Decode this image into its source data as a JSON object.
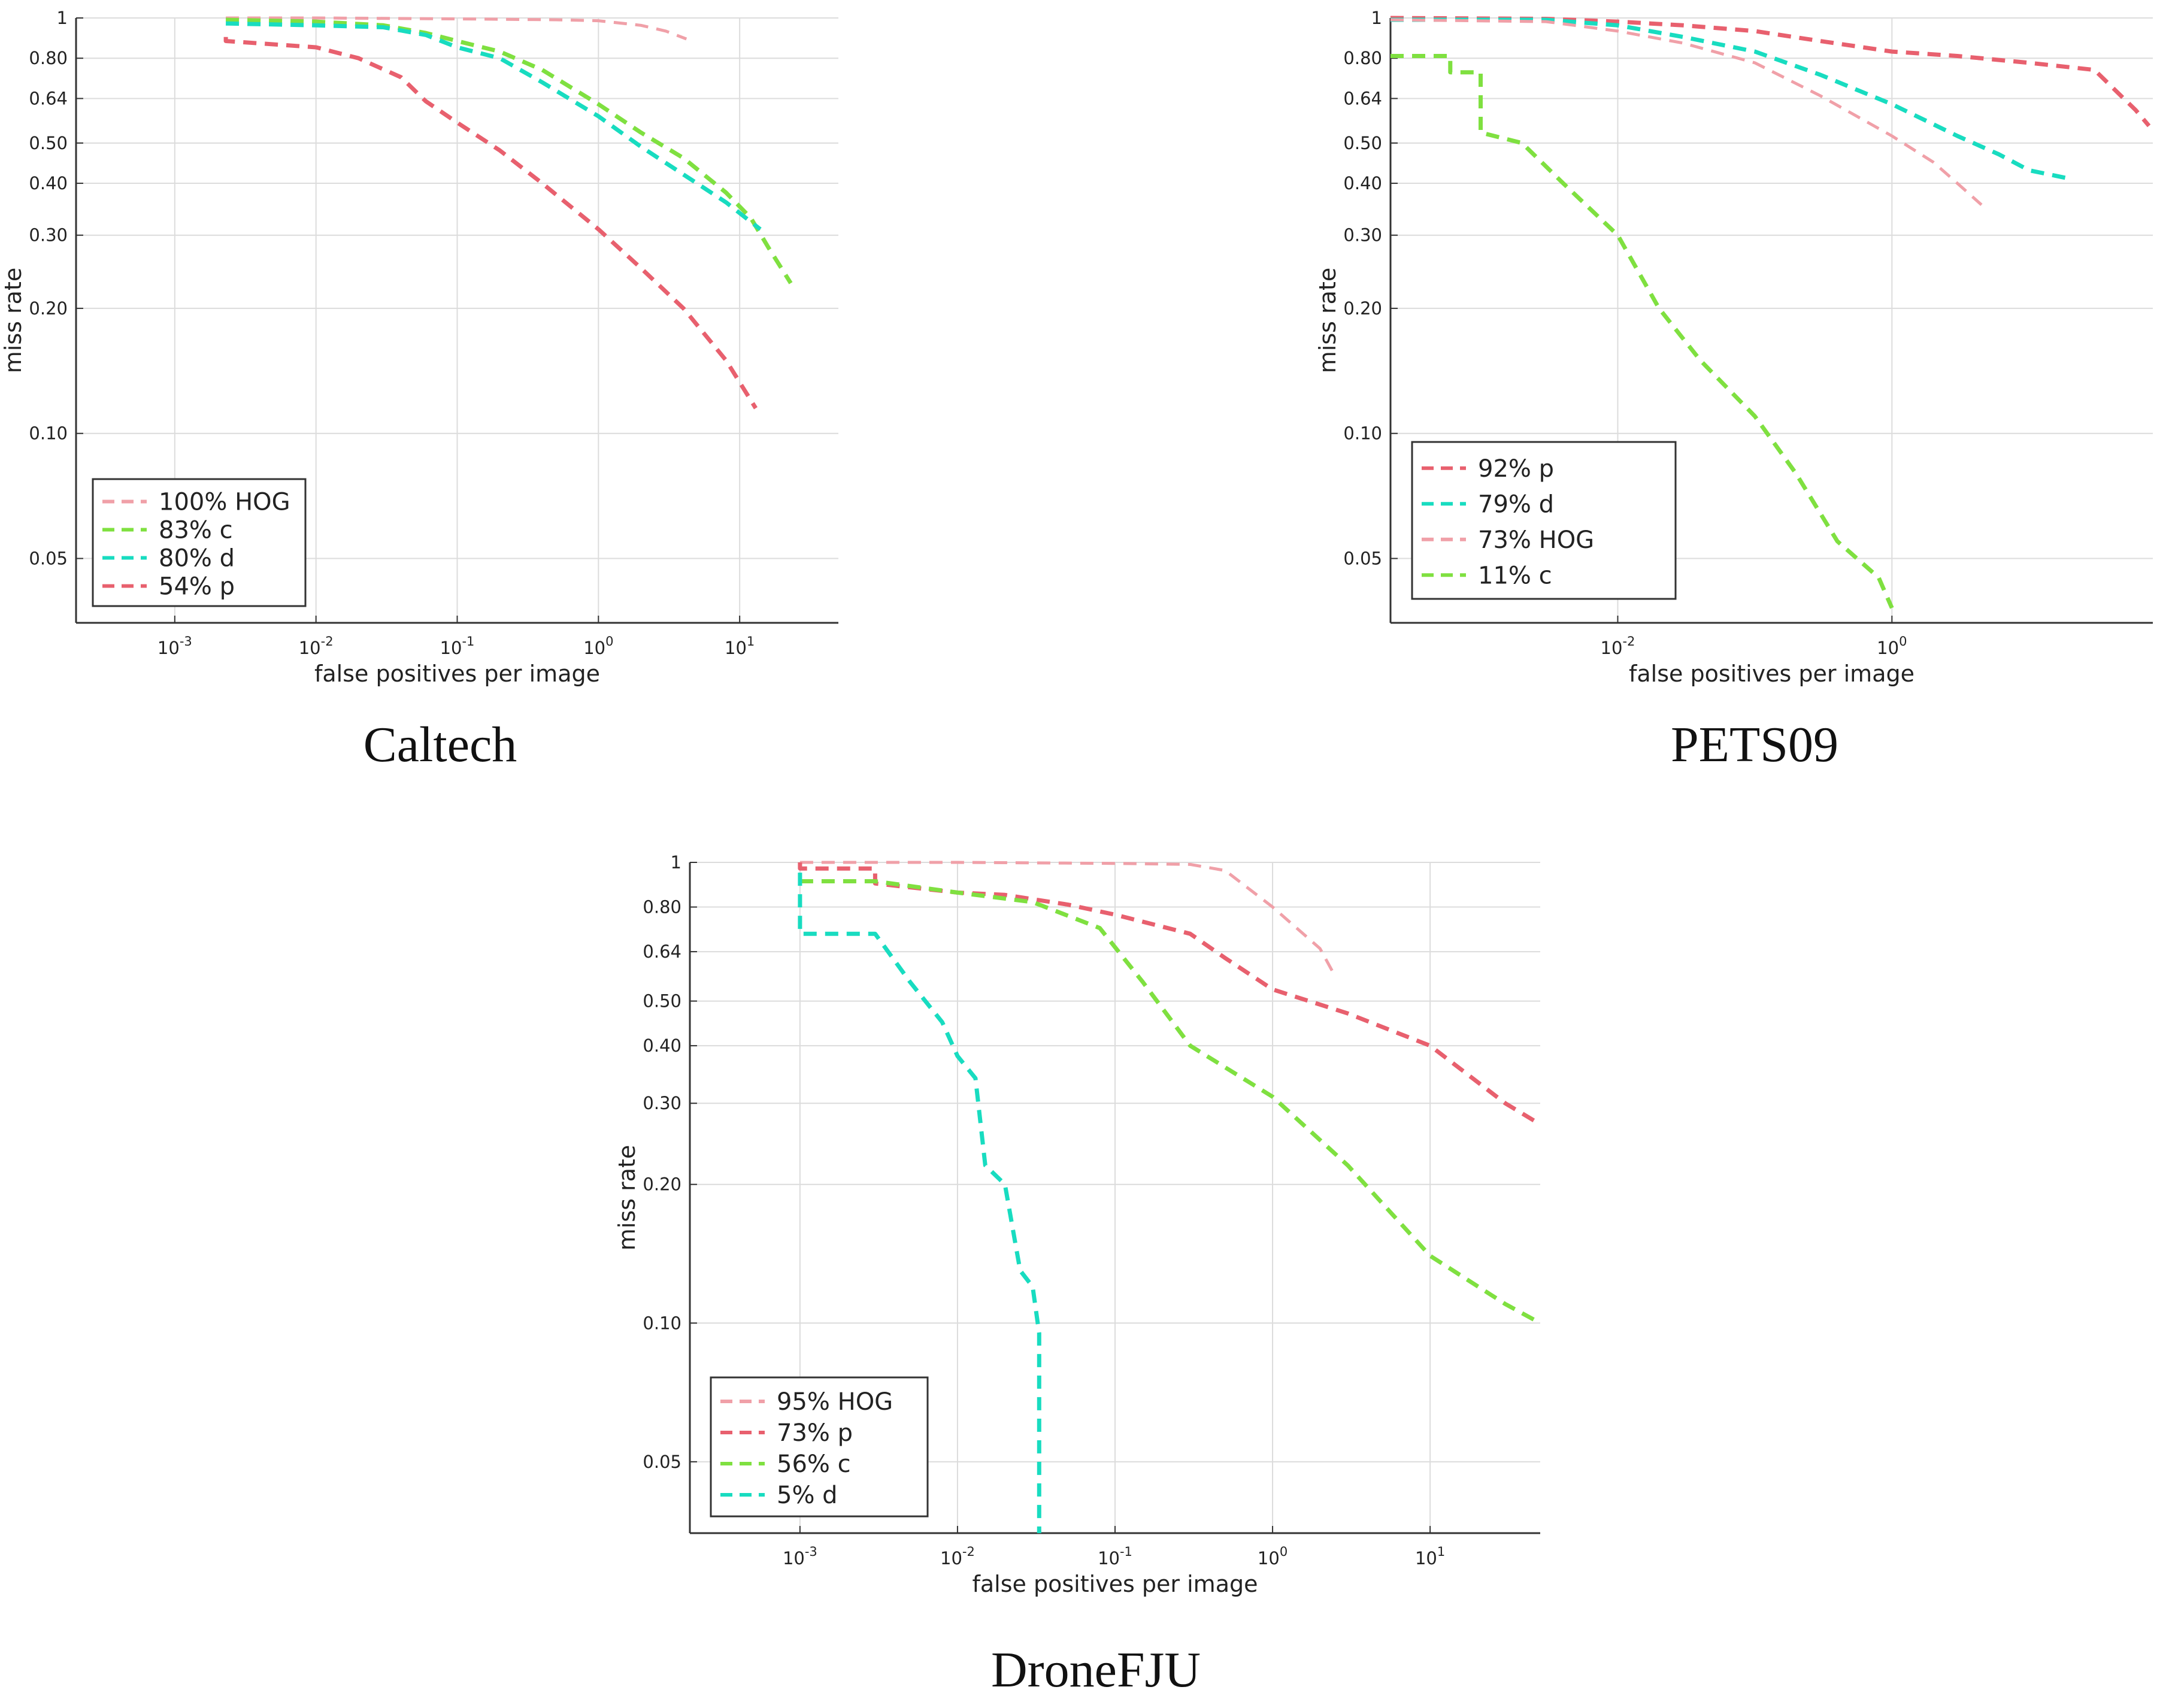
{
  "chart_data": [
    {
      "type": "line",
      "caption": "Caltech",
      "xlabel": "false positives per image",
      "ylabel": "miss rate",
      "xscale": "log",
      "yscale": "log",
      "xlim": [
        0.0002,
        50
      ],
      "ylim": [
        0.035,
        1
      ],
      "xticks": [
        0.001,
        0.01,
        0.1,
        1,
        10
      ],
      "xtick_labels": [
        {
          "base": "10",
          "exp": "-3"
        },
        {
          "base": "10",
          "exp": "-2"
        },
        {
          "base": "10",
          "exp": "-1"
        },
        {
          "base": "10",
          "exp": "0"
        },
        {
          "base": "10",
          "exp": "1"
        }
      ],
      "yticks": [
        1,
        0.8,
        0.64,
        0.5,
        0.4,
        0.3,
        0.2,
        0.1,
        0.05
      ],
      "ytick_labels": [
        "1",
        "0.80",
        "0.64",
        "0.50",
        "0.40",
        "0.30",
        "0.20",
        "0.10",
        "0.05"
      ],
      "grid": true,
      "legend_position": "bottom-left",
      "series": [
        {
          "name": "100% HOG",
          "color": "#f0a0a8",
          "points": [
            [
              0.0023,
              1
            ],
            [
              0.01,
              1
            ],
            [
              0.1,
              0.995
            ],
            [
              0.5,
              0.99
            ],
            [
              1,
              0.985
            ],
            [
              2,
              0.96
            ],
            [
              3,
              0.93
            ],
            [
              4.2,
              0.89
            ]
          ]
        },
        {
          "name": "83% c",
          "color": "#7fe040",
          "points": [
            [
              0.0023,
              0.99
            ],
            [
              0.01,
              0.98
            ],
            [
              0.03,
              0.96
            ],
            [
              0.06,
              0.92
            ],
            [
              0.1,
              0.88
            ],
            [
              0.2,
              0.83
            ],
            [
              0.4,
              0.75
            ],
            [
              1,
              0.62
            ],
            [
              2,
              0.53
            ],
            [
              4,
              0.46
            ],
            [
              8,
              0.38
            ],
            [
              12,
              0.33
            ],
            [
              16,
              0.28
            ],
            [
              23,
              0.23
            ]
          ]
        },
        {
          "name": "80% d",
          "color": "#18dcc0",
          "points": [
            [
              0.0023,
              0.97
            ],
            [
              0.01,
              0.96
            ],
            [
              0.03,
              0.95
            ],
            [
              0.06,
              0.91
            ],
            [
              0.1,
              0.85
            ],
            [
              0.2,
              0.8
            ],
            [
              0.4,
              0.7
            ],
            [
              1,
              0.58
            ],
            [
              2,
              0.49
            ],
            [
              4,
              0.42
            ],
            [
              8,
              0.36
            ],
            [
              14,
              0.31
            ]
          ]
        },
        {
          "name": "54% p",
          "color": "#e8606e",
          "points": [
            [
              0.0023,
              0.9
            ],
            [
              0.0023,
              0.88
            ],
            [
              0.01,
              0.85
            ],
            [
              0.02,
              0.8
            ],
            [
              0.04,
              0.72
            ],
            [
              0.06,
              0.63
            ],
            [
              0.1,
              0.56
            ],
            [
              0.2,
              0.48
            ],
            [
              0.4,
              0.4
            ],
            [
              1,
              0.31
            ],
            [
              2,
              0.25
            ],
            [
              4,
              0.2
            ],
            [
              8,
              0.15
            ],
            [
              13,
              0.115
            ]
          ]
        }
      ]
    },
    {
      "type": "line",
      "caption": "PETS09",
      "xlabel": "false positives per image",
      "ylabel": "miss rate",
      "xscale": "log",
      "yscale": "log",
      "xlim": [
        0.00022,
        80
      ],
      "ylim": [
        0.035,
        1
      ],
      "xticks": [
        0.01,
        1
      ],
      "xtick_labels": [
        {
          "base": "10",
          "exp": "-2"
        },
        {
          "base": "10",
          "exp": "0"
        }
      ],
      "yticks": [
        1,
        0.8,
        0.64,
        0.5,
        0.4,
        0.3,
        0.2,
        0.1,
        0.05
      ],
      "ytick_labels": [
        "1",
        "0.80",
        "0.64",
        "0.50",
        "0.40",
        "0.30",
        "0.20",
        "0.10",
        "0.05"
      ],
      "grid": true,
      "legend_position": "bottom-left",
      "series": [
        {
          "name": "92% p",
          "color": "#e8606e",
          "points": [
            [
              0.00022,
              1
            ],
            [
              0.003,
              0.995
            ],
            [
              0.01,
              0.98
            ],
            [
              0.03,
              0.96
            ],
            [
              0.1,
              0.93
            ],
            [
              0.3,
              0.88
            ],
            [
              1,
              0.83
            ],
            [
              3,
              0.81
            ],
            [
              10,
              0.78
            ],
            [
              30,
              0.75
            ],
            [
              60,
              0.6
            ],
            [
              75,
              0.55
            ]
          ]
        },
        {
          "name": "79% d",
          "color": "#18dcc0",
          "points": [
            [
              0.00022,
              0.99
            ],
            [
              0.003,
              0.99
            ],
            [
              0.01,
              0.96
            ],
            [
              0.03,
              0.9
            ],
            [
              0.1,
              0.83
            ],
            [
              0.3,
              0.73
            ],
            [
              1,
              0.62
            ],
            [
              3,
              0.52
            ],
            [
              6,
              0.47
            ],
            [
              10,
              0.43
            ],
            [
              20,
              0.41
            ]
          ]
        },
        {
          "name": "73% HOG",
          "color": "#f0a0a8",
          "points": [
            [
              0.00022,
              0.99
            ],
            [
              0.003,
              0.98
            ],
            [
              0.01,
              0.93
            ],
            [
              0.03,
              0.87
            ],
            [
              0.1,
              0.78
            ],
            [
              0.3,
              0.65
            ],
            [
              1,
              0.52
            ],
            [
              2,
              0.45
            ],
            [
              3,
              0.4
            ],
            [
              4.5,
              0.355
            ]
          ]
        },
        {
          "name": "11% c",
          "color": "#7fe040",
          "points": [
            [
              0.00022,
              0.81
            ],
            [
              0.0006,
              0.81
            ],
            [
              0.0006,
              0.74
            ],
            [
              0.001,
              0.74
            ],
            [
              0.001,
              0.53
            ],
            [
              0.002,
              0.5
            ],
            [
              0.004,
              0.4
            ],
            [
              0.01,
              0.3
            ],
            [
              0.02,
              0.2
            ],
            [
              0.04,
              0.15
            ],
            [
              0.1,
              0.11
            ],
            [
              0.2,
              0.08
            ],
            [
              0.4,
              0.055
            ],
            [
              0.8,
              0.045
            ],
            [
              1,
              0.038
            ]
          ]
        }
      ]
    },
    {
      "type": "line",
      "caption": "DroneFJU",
      "xlabel": "false positives per image",
      "ylabel": "miss rate",
      "xscale": "log",
      "yscale": "log",
      "xlim": [
        0.0002,
        50
      ],
      "ylim": [
        0.035,
        1
      ],
      "xticks": [
        0.001,
        0.01,
        0.1,
        1,
        10
      ],
      "xtick_labels": [
        {
          "base": "10",
          "exp": "-3"
        },
        {
          "base": "10",
          "exp": "-2"
        },
        {
          "base": "10",
          "exp": "-1"
        },
        {
          "base": "10",
          "exp": "0"
        },
        {
          "base": "10",
          "exp": "1"
        }
      ],
      "yticks": [
        1,
        0.8,
        0.64,
        0.5,
        0.4,
        0.3,
        0.2,
        0.1,
        0.05
      ],
      "ytick_labels": [
        "1",
        "0.80",
        "0.64",
        "0.50",
        "0.40",
        "0.30",
        "0.20",
        "0.10",
        "0.05"
      ],
      "grid": true,
      "legend_position": "bottom-left",
      "series": [
        {
          "name": "95% HOG",
          "color": "#f0a0a8",
          "points": [
            [
              0.001,
              1
            ],
            [
              0.01,
              1
            ],
            [
              0.1,
              0.995
            ],
            [
              0.3,
              0.99
            ],
            [
              0.5,
              0.96
            ],
            [
              1,
              0.8
            ],
            [
              2,
              0.65
            ],
            [
              2.4,
              0.58
            ]
          ]
        },
        {
          "name": "73% p",
          "color": "#e8606e",
          "points": [
            [
              0.001,
              1
            ],
            [
              0.001,
              0.97
            ],
            [
              0.003,
              0.97
            ],
            [
              0.003,
              0.9
            ],
            [
              0.01,
              0.86
            ],
            [
              0.02,
              0.85
            ],
            [
              0.05,
              0.81
            ],
            [
              0.1,
              0.77
            ],
            [
              0.3,
              0.7
            ],
            [
              0.5,
              0.62
            ],
            [
              1,
              0.53
            ],
            [
              3,
              0.47
            ],
            [
              10,
              0.4
            ],
            [
              30,
              0.3
            ],
            [
              50,
              0.27
            ]
          ]
        },
        {
          "name": "56% c",
          "color": "#7fe040",
          "points": [
            [
              0.001,
              0.91
            ],
            [
              0.003,
              0.91
            ],
            [
              0.01,
              0.86
            ],
            [
              0.03,
              0.82
            ],
            [
              0.08,
              0.72
            ],
            [
              0.15,
              0.55
            ],
            [
              0.3,
              0.4
            ],
            [
              1,
              0.31
            ],
            [
              3,
              0.22
            ],
            [
              10,
              0.14
            ],
            [
              30,
              0.11
            ],
            [
              50,
              0.1
            ]
          ]
        },
        {
          "name": "5% d",
          "color": "#18dcc0",
          "points": [
            [
              0.001,
              0.95
            ],
            [
              0.001,
              0.7
            ],
            [
              0.003,
              0.7
            ],
            [
              0.005,
              0.55
            ],
            [
              0.008,
              0.45
            ],
            [
              0.01,
              0.38
            ],
            [
              0.013,
              0.34
            ],
            [
              0.015,
              0.22
            ],
            [
              0.02,
              0.2
            ],
            [
              0.025,
              0.13
            ],
            [
              0.03,
              0.12
            ],
            [
              0.033,
              0.095
            ],
            [
              0.033,
              0.035
            ]
          ]
        }
      ]
    }
  ]
}
